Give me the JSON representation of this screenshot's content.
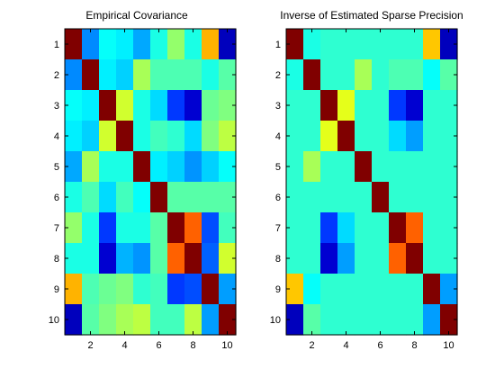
{
  "chart_data": [
    {
      "type": "heatmap",
      "title": "Empirical Covariance",
      "colormap": "jet",
      "rows": [
        1,
        2,
        3,
        4,
        5,
        6,
        7,
        8,
        9,
        10
      ],
      "cols": [
        1,
        2,
        3,
        4,
        5,
        6,
        7,
        8,
        9,
        10
      ],
      "xticks": [
        "2",
        "4",
        "6",
        "8",
        "10"
      ],
      "yticks": [
        "1",
        "2",
        "3",
        "4",
        "5",
        "6",
        "7",
        "8",
        "9",
        "10"
      ],
      "color_levels": [
        [
          1.0,
          0.26,
          0.38,
          0.36,
          0.29,
          0.4,
          0.52,
          0.4,
          0.7,
          0.06
        ],
        [
          0.26,
          1.0,
          0.36,
          0.33,
          0.54,
          0.45,
          0.45,
          0.45,
          0.4,
          0.46
        ],
        [
          0.38,
          0.36,
          1.0,
          0.58,
          0.4,
          0.34,
          0.18,
          0.08,
          0.48,
          0.5
        ],
        [
          0.36,
          0.33,
          0.58,
          1.0,
          0.4,
          0.44,
          0.42,
          0.34,
          0.5,
          0.56
        ],
        [
          0.29,
          0.54,
          0.4,
          0.4,
          1.0,
          0.36,
          0.33,
          0.27,
          0.33,
          0.38
        ],
        [
          0.4,
          0.45,
          0.34,
          0.44,
          0.38,
          1.0,
          0.46,
          0.46,
          0.46,
          0.46
        ],
        [
          0.52,
          0.4,
          0.18,
          0.4,
          0.4,
          0.46,
          1.0,
          0.78,
          0.2,
          0.44
        ],
        [
          0.4,
          0.4,
          0.08,
          0.3,
          0.27,
          0.46,
          0.78,
          1.0,
          0.22,
          0.58
        ],
        [
          0.7,
          0.45,
          0.48,
          0.5,
          0.42,
          0.44,
          0.18,
          0.2,
          1.0,
          0.28
        ],
        [
          0.06,
          0.46,
          0.5,
          0.54,
          0.56,
          0.44,
          0.44,
          0.56,
          0.28,
          1.0
        ]
      ]
    },
    {
      "type": "heatmap",
      "title": "Inverse of Estimated Sparse Precision",
      "colormap": "jet",
      "rows": [
        1,
        2,
        3,
        4,
        5,
        6,
        7,
        8,
        9,
        10
      ],
      "cols": [
        1,
        2,
        3,
        4,
        5,
        6,
        7,
        8,
        9,
        10
      ],
      "xticks": [
        "2",
        "4",
        "6",
        "8",
        "10"
      ],
      "yticks": [
        "1",
        "2",
        "3",
        "4",
        "5",
        "6",
        "7",
        "8",
        "9",
        "10"
      ],
      "color_levels": [
        [
          1.0,
          0.4,
          0.42,
          0.42,
          0.42,
          0.42,
          0.42,
          0.42,
          0.68,
          0.06
        ],
        [
          0.4,
          1.0,
          0.42,
          0.42,
          0.54,
          0.42,
          0.45,
          0.45,
          0.38,
          0.46
        ],
        [
          0.42,
          0.42,
          1.0,
          0.6,
          0.42,
          0.42,
          0.18,
          0.08,
          0.42,
          0.42
        ],
        [
          0.42,
          0.42,
          0.6,
          1.0,
          0.42,
          0.42,
          0.34,
          0.28,
          0.42,
          0.42
        ],
        [
          0.42,
          0.54,
          0.42,
          0.42,
          1.0,
          0.42,
          0.42,
          0.42,
          0.42,
          0.42
        ],
        [
          0.42,
          0.42,
          0.42,
          0.42,
          0.42,
          1.0,
          0.42,
          0.42,
          0.42,
          0.42
        ],
        [
          0.42,
          0.42,
          0.18,
          0.34,
          0.42,
          0.42,
          1.0,
          0.78,
          0.42,
          0.42
        ],
        [
          0.42,
          0.42,
          0.08,
          0.28,
          0.42,
          0.42,
          0.78,
          1.0,
          0.42,
          0.42
        ],
        [
          0.68,
          0.38,
          0.42,
          0.42,
          0.42,
          0.42,
          0.42,
          0.42,
          1.0,
          0.28
        ],
        [
          0.06,
          0.46,
          0.42,
          0.42,
          0.42,
          0.42,
          0.42,
          0.42,
          0.28,
          1.0
        ]
      ]
    }
  ]
}
